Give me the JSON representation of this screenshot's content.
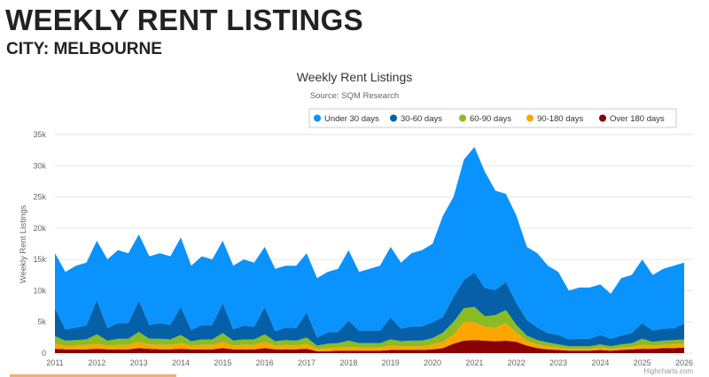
{
  "page": {
    "heading": "WEEKLY RENT LISTINGS",
    "subheading": "CITY: MELBOURNE"
  },
  "chart_data": {
    "type": "area",
    "stacking": "normal",
    "title": "Weekly Rent Listings",
    "subtitle": "Source: SQM Research",
    "ylabel": "Weekly Rent Listings",
    "xlabel": "",
    "ylim": [
      0,
      35000
    ],
    "yticks": [
      "0",
      "5k",
      "10k",
      "15k",
      "20k",
      "25k",
      "30k",
      "35k"
    ],
    "xticks": [
      "2011",
      "2012",
      "2013",
      "2014",
      "2015",
      "2016",
      "2017",
      "2018",
      "2019",
      "2020",
      "2021",
      "2022",
      "2023",
      "2024",
      "2025",
      "2026"
    ],
    "grid": true,
    "legend_position": "top-right",
    "credit": "Highcharts.com",
    "x": [
      "2011-01",
      "2011-04",
      "2011-07",
      "2011-10",
      "2012-01",
      "2012-04",
      "2012-07",
      "2012-10",
      "2013-01",
      "2013-04",
      "2013-07",
      "2013-10",
      "2014-01",
      "2014-04",
      "2014-07",
      "2014-10",
      "2015-01",
      "2015-04",
      "2015-07",
      "2015-10",
      "2016-01",
      "2016-04",
      "2016-07",
      "2016-10",
      "2017-01",
      "2017-04",
      "2017-07",
      "2017-10",
      "2018-01",
      "2018-04",
      "2018-07",
      "2018-10",
      "2019-01",
      "2019-04",
      "2019-07",
      "2019-10",
      "2020-01",
      "2020-04",
      "2020-07",
      "2020-10",
      "2021-01",
      "2021-04",
      "2021-07",
      "2021-10",
      "2022-01",
      "2022-04",
      "2022-07",
      "2022-10",
      "2023-01",
      "2023-04",
      "2023-07",
      "2023-10",
      "2024-01",
      "2024-04",
      "2024-07",
      "2024-10",
      "2025-01",
      "2025-04",
      "2025-07",
      "2025-10",
      "2026-01"
    ],
    "series": [
      {
        "name": "Under 30 days",
        "color": "#0a93fc",
        "values": [
          8800,
          9200,
          9900,
          10100,
          9500,
          11000,
          11700,
          11200,
          10600,
          11000,
          11200,
          11000,
          11100,
          10300,
          11000,
          10500,
          10000,
          10200,
          10600,
          10300,
          9600,
          10000,
          9900,
          10000,
          9500,
          9500,
          9700,
          10100,
          11300,
          9400,
          9900,
          10400,
          11300,
          10600,
          11700,
          12200,
          12600,
          16200,
          16000,
          19300,
          20100,
          18600,
          15900,
          14100,
          14000,
          11700,
          11900,
          10800,
          10100,
          7800,
          8200,
          8200,
          8100,
          7200,
          9200,
          9300,
          10200,
          8900,
          9600,
          10000,
          9800
        ]
      },
      {
        "name": "30-60 days",
        "color": "#0560a8",
        "values": [
          4500,
          1800,
          2000,
          2200,
          5500,
          2000,
          2500,
          2500,
          5000,
          2200,
          2500,
          2300,
          4500,
          1800,
          2300,
          2300,
          4800,
          1800,
          2200,
          2000,
          4400,
          1600,
          2000,
          2000,
          4000,
          1300,
          1800,
          1800,
          3200,
          2000,
          2000,
          2000,
          3500,
          2000,
          2300,
          2300,
          2500,
          2500,
          4000,
          4500,
          5500,
          4500,
          4000,
          4500,
          3500,
          2500,
          2000,
          1500,
          1500,
          1100,
          1200,
          1200,
          1500,
          1200,
          1400,
          1600,
          2500,
          1800,
          1900,
          1900,
          2500
        ]
      },
      {
        "name": "60-90 days",
        "color": "#8bbc21",
        "values": [
          1200,
          800,
          900,
          900,
          1500,
          800,
          1000,
          1000,
          1600,
          900,
          1000,
          900,
          1300,
          700,
          900,
          900,
          1400,
          800,
          900,
          900,
          1200,
          700,
          800,
          800,
          1000,
          500,
          700,
          700,
          1000,
          700,
          700,
          700,
          1000,
          800,
          900,
          900,
          1000,
          1500,
          2000,
          2200,
          2500,
          1700,
          2000,
          2100,
          1200,
          800,
          700,
          600,
          500,
          400,
          400,
          400,
          500,
          400,
          500,
          600,
          1000,
          600,
          700,
          700,
          700
        ]
      },
      {
        "name": "90-180 days",
        "color": "#ffa500",
        "values": [
          800,
          600,
          600,
          700,
          800,
          600,
          700,
          700,
          1000,
          700,
          700,
          700,
          900,
          600,
          700,
          700,
          1000,
          600,
          700,
          700,
          1000,
          600,
          700,
          600,
          800,
          400,
          500,
          500,
          600,
          500,
          500,
          500,
          700,
          600,
          600,
          600,
          800,
          1000,
          1500,
          3000,
          2800,
          2200,
          2200,
          2800,
          1500,
          800,
          600,
          500,
          400,
          300,
          300,
          300,
          400,
          300,
          400,
          400,
          600,
          500,
          500,
          600,
          600
        ]
      },
      {
        "name": "Over 180 days",
        "color": "#8b0000",
        "values": [
          700,
          600,
          600,
          600,
          700,
          600,
          600,
          600,
          800,
          700,
          600,
          600,
          700,
          600,
          600,
          600,
          800,
          600,
          600,
          600,
          800,
          600,
          600,
          600,
          700,
          300,
          300,
          400,
          400,
          400,
          400,
          400,
          500,
          500,
          500,
          500,
          600,
          800,
          1500,
          2000,
          2100,
          2000,
          1900,
          2000,
          1800,
          1200,
          800,
          600,
          500,
          400,
          400,
          400,
          500,
          400,
          500,
          600,
          700,
          700,
          800,
          800,
          900
        ]
      }
    ]
  }
}
